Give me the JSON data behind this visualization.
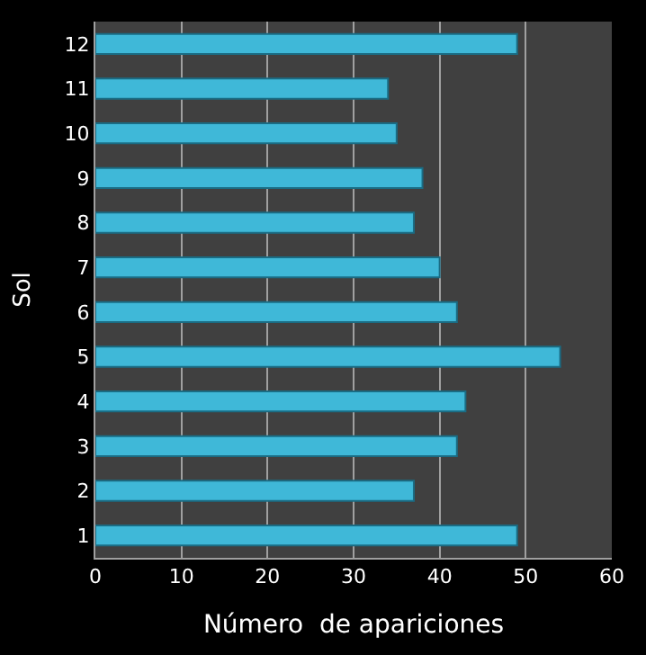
{
  "chart_data": {
    "type": "bar",
    "orientation": "horizontal",
    "xlabel": "Número  de apariciones",
    "ylabel": "Sol",
    "categories": [
      "12",
      "11",
      "10",
      "9",
      "8",
      "7",
      "6",
      "5",
      "4",
      "3",
      "2",
      "1"
    ],
    "values": [
      49,
      34,
      35,
      38,
      37,
      40,
      42,
      54,
      43,
      42,
      37,
      49
    ],
    "color": "#3fb8d8",
    "xlim": [
      0,
      60
    ],
    "xticks": [
      0,
      10,
      20,
      30,
      40,
      50,
      60
    ],
    "grid": "x"
  }
}
